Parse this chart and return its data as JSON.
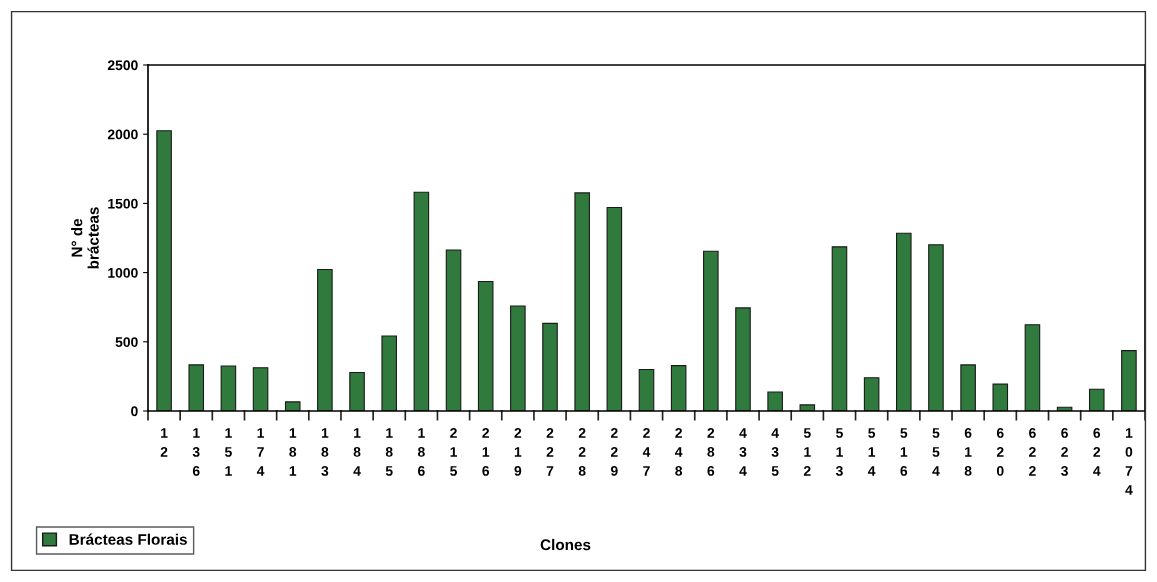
{
  "chart_data": {
    "type": "bar",
    "xlabel": "Clones",
    "ylabel": "N° de\nbrácteas",
    "categories": [
      "12",
      "136",
      "151",
      "174",
      "181",
      "183",
      "184",
      "185",
      "186",
      "215",
      "216",
      "219",
      "227",
      "228",
      "229",
      "247",
      "248",
      "286",
      "434",
      "435",
      "512",
      "513",
      "514",
      "516",
      "554",
      "618",
      "620",
      "622",
      "623",
      "624",
      "1074"
    ],
    "series": [
      {
        "name": "Brácteas Florais",
        "color": "#2f7a3c",
        "values": [
          2025,
          333,
          325,
          313,
          66,
          1022,
          278,
          542,
          1581,
          1163,
          936,
          759,
          633,
          1576,
          1470,
          300,
          328,
          1154,
          745,
          137,
          44,
          1186,
          240,
          1284,
          1201,
          333,
          194,
          623,
          27,
          157,
          436
        ]
      }
    ],
    "ylim": [
      0,
      2500
    ],
    "yticks": [
      0,
      500,
      1000,
      1500,
      2000,
      2500
    ],
    "grid": false,
    "legend": "bottom left"
  }
}
